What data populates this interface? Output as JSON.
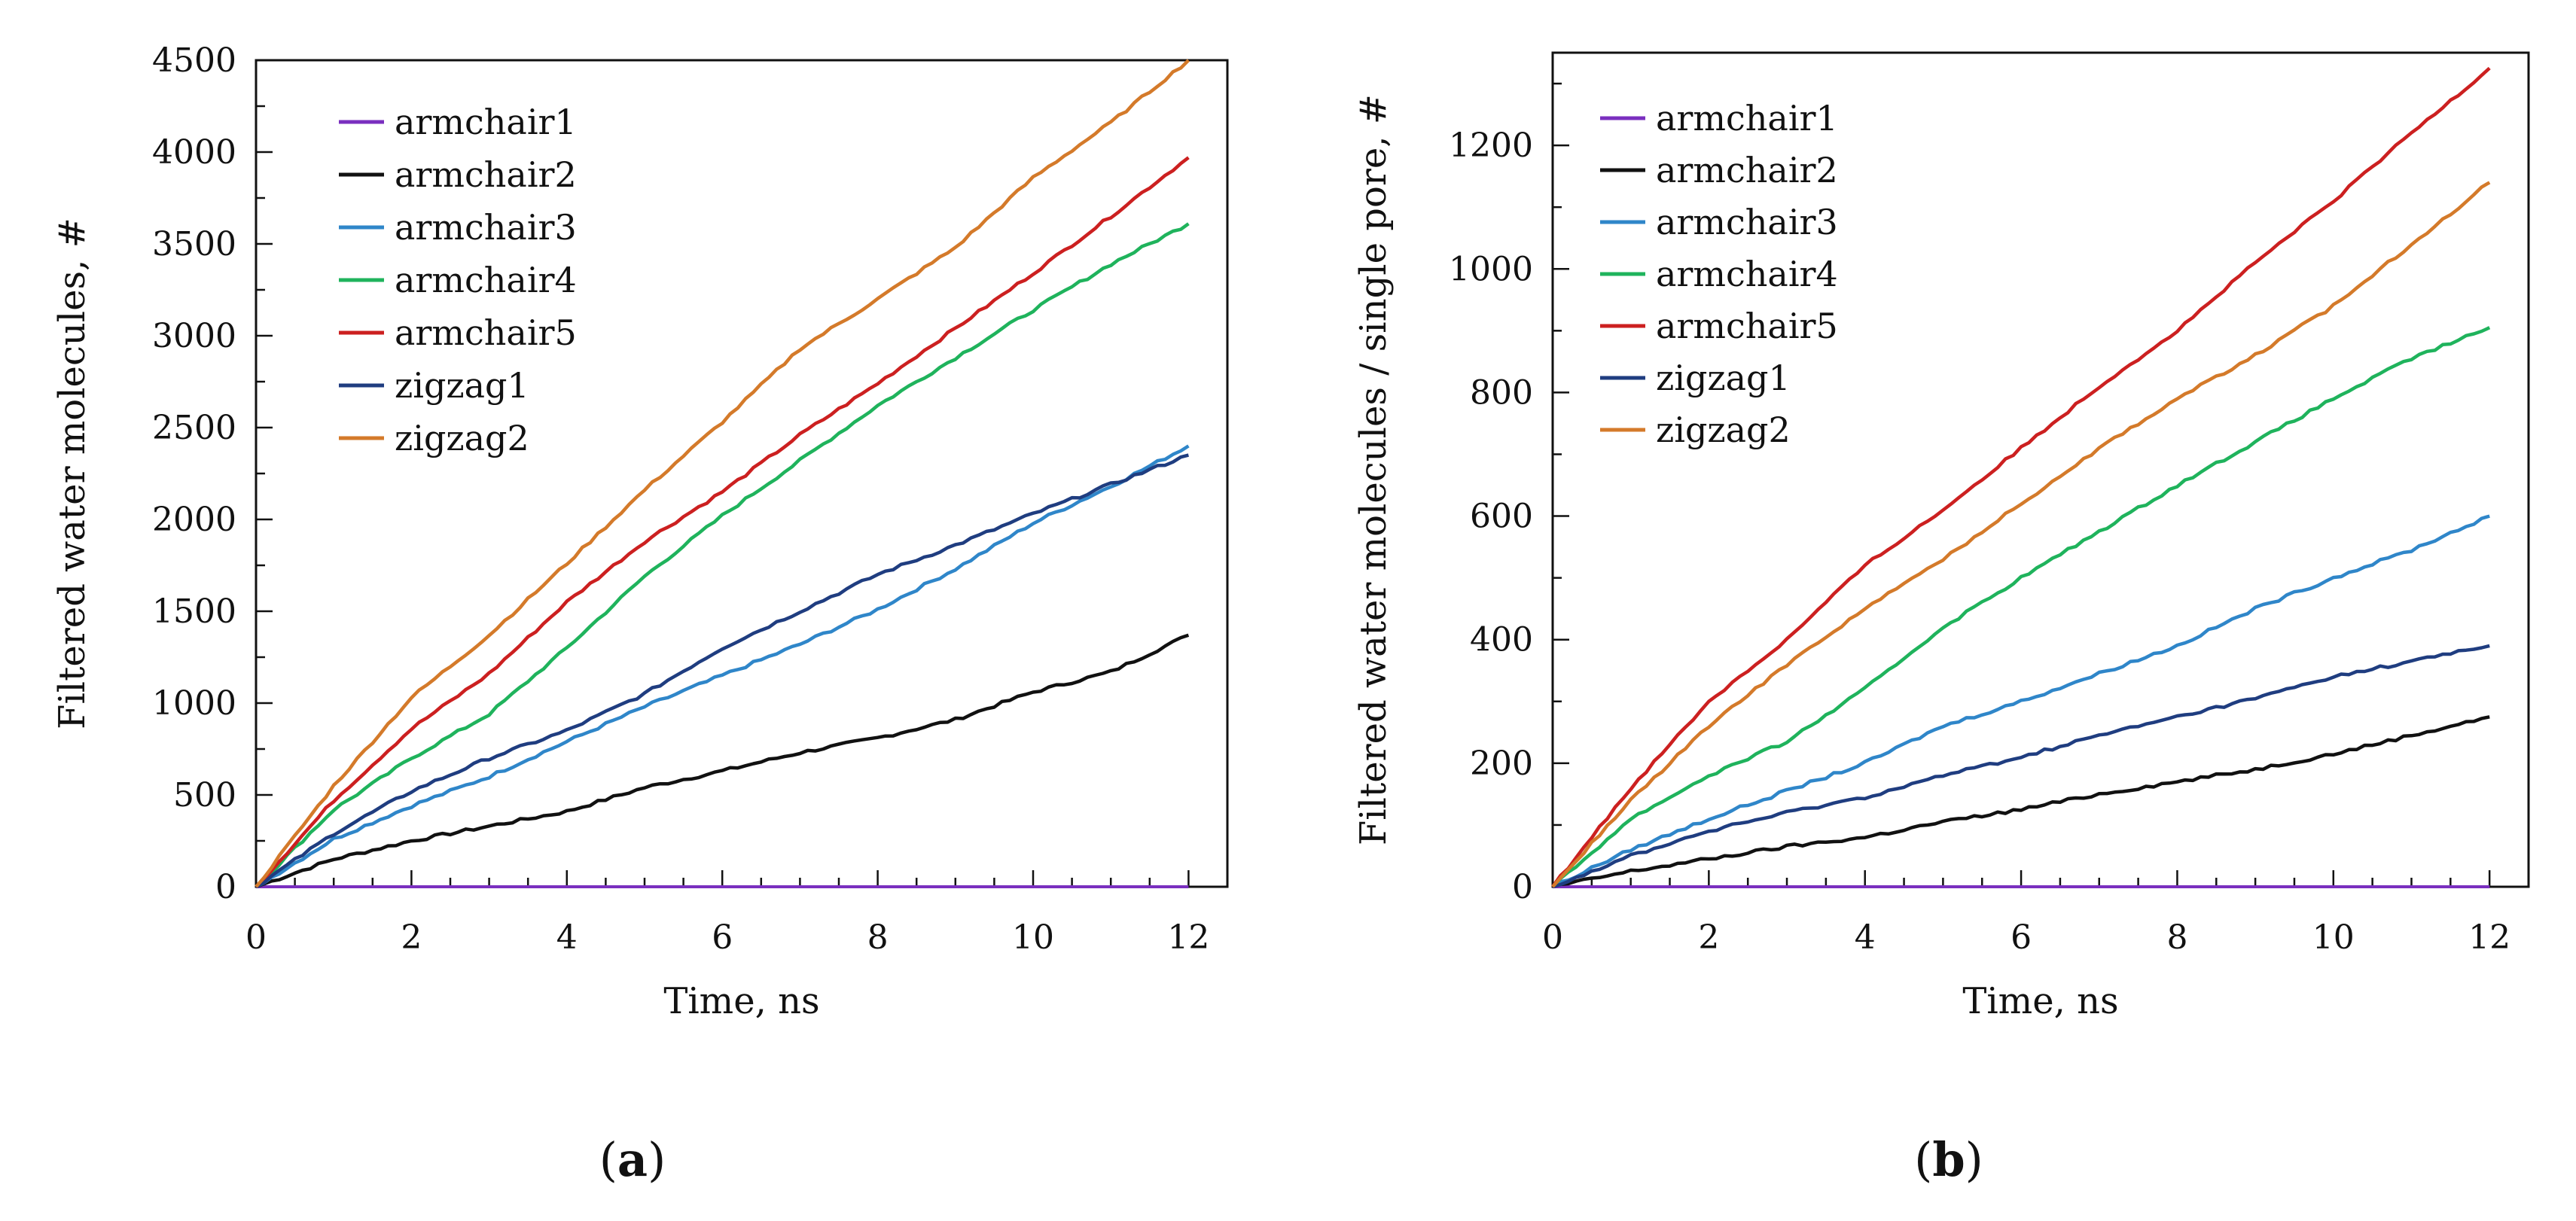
{
  "chart_data": [
    {
      "type": "line",
      "panel": "a",
      "panel_label": "a",
      "xlabel": "Time, ns",
      "ylabel": "Filtered water molecules, #",
      "xlim": [
        0,
        12.5
      ],
      "ylim": [
        0,
        4500
      ],
      "xticks": [
        0,
        2,
        4,
        6,
        8,
        10,
        12
      ],
      "yticks": [
        0,
        500,
        1000,
        1500,
        2000,
        2500,
        3000,
        3500,
        4000,
        4500
      ],
      "x": [
        0,
        1,
        2,
        3,
        4,
        5,
        6,
        7,
        8,
        9,
        10,
        11,
        12
      ],
      "legend_position": "top-left",
      "series": [
        {
          "name": "armchair1",
          "color": "#7a2fbf",
          "values": [
            0,
            0,
            0,
            0,
            0,
            0,
            0,
            0,
            0,
            0,
            0,
            0,
            0
          ]
        },
        {
          "name": "armchair2",
          "color": "#111111",
          "values": [
            0,
            150,
            250,
            330,
            410,
            540,
            630,
            730,
            810,
            910,
            1060,
            1170,
            1370
          ]
        },
        {
          "name": "armchair3",
          "color": "#2f86c9",
          "values": [
            0,
            260,
            440,
            600,
            790,
            980,
            1150,
            1320,
            1510,
            1730,
            1980,
            2180,
            2400
          ]
        },
        {
          "name": "armchair4",
          "color": "#1fb35c",
          "values": [
            0,
            420,
            700,
            940,
            1300,
            1690,
            2020,
            2320,
            2620,
            2880,
            3140,
            3390,
            3610
          ]
        },
        {
          "name": "armchair5",
          "color": "#cc2020",
          "values": [
            0,
            470,
            860,
            1160,
            1550,
            1880,
            2150,
            2460,
            2740,
            3040,
            3340,
            3650,
            3970
          ]
        },
        {
          "name": "zigzag1",
          "color": "#1f3d80",
          "values": [
            0,
            290,
            520,
            700,
            850,
            1050,
            1300,
            1500,
            1700,
            1860,
            2030,
            2190,
            2350
          ]
        },
        {
          "name": "zigzag2",
          "color": "#d47a2a",
          "values": [
            0,
            550,
            1030,
            1370,
            1760,
            2160,
            2530,
            2930,
            3200,
            3480,
            3860,
            4160,
            4500
          ]
        }
      ]
    },
    {
      "type": "line",
      "panel": "b",
      "panel_label": "b",
      "xlabel": "Time, ns",
      "ylabel": "Filtered water molecules / single pore, #",
      "xlim": [
        0,
        12.5
      ],
      "ylim": [
        0,
        1350
      ],
      "xticks": [
        0,
        2,
        4,
        6,
        8,
        10,
        12
      ],
      "yticks": [
        0,
        200,
        400,
        600,
        800,
        1000,
        1200
      ],
      "x": [
        0,
        1,
        2,
        3,
        4,
        5,
        6,
        7,
        8,
        9,
        10,
        11,
        12
      ],
      "legend_position": "top-left",
      "series": [
        {
          "name": "armchair1",
          "color": "#7a2fbf",
          "values": [
            0,
            0,
            0,
            0,
            0,
            0,
            0,
            0,
            0,
            0,
            0,
            0,
            0
          ]
        },
        {
          "name": "armchair2",
          "color": "#111111",
          "values": [
            0,
            25,
            45,
            65,
            80,
            105,
            125,
            150,
            170,
            190,
            215,
            245,
            275
          ]
        },
        {
          "name": "armchair3",
          "color": "#2f86c9",
          "values": [
            0,
            60,
            110,
            155,
            200,
            260,
            300,
            345,
            390,
            450,
            500,
            545,
            600
          ]
        },
        {
          "name": "armchair4",
          "color": "#1fb35c",
          "values": [
            0,
            110,
            180,
            235,
            320,
            420,
            500,
            575,
            650,
            720,
            790,
            855,
            905
          ]
        },
        {
          "name": "armchair5",
          "color": "#cc2020",
          "values": [
            0,
            160,
            300,
            400,
            520,
            610,
            710,
            810,
            900,
            1010,
            1110,
            1220,
            1325
          ]
        },
        {
          "name": "zigzag1",
          "color": "#1f3d80",
          "values": [
            0,
            50,
            90,
            120,
            145,
            180,
            210,
            245,
            275,
            305,
            340,
            365,
            390
          ]
        },
        {
          "name": "zigzag2",
          "color": "#d47a2a",
          "values": [
            0,
            140,
            260,
            360,
            450,
            530,
            620,
            710,
            790,
            860,
            940,
            1040,
            1140
          ]
        }
      ]
    }
  ]
}
